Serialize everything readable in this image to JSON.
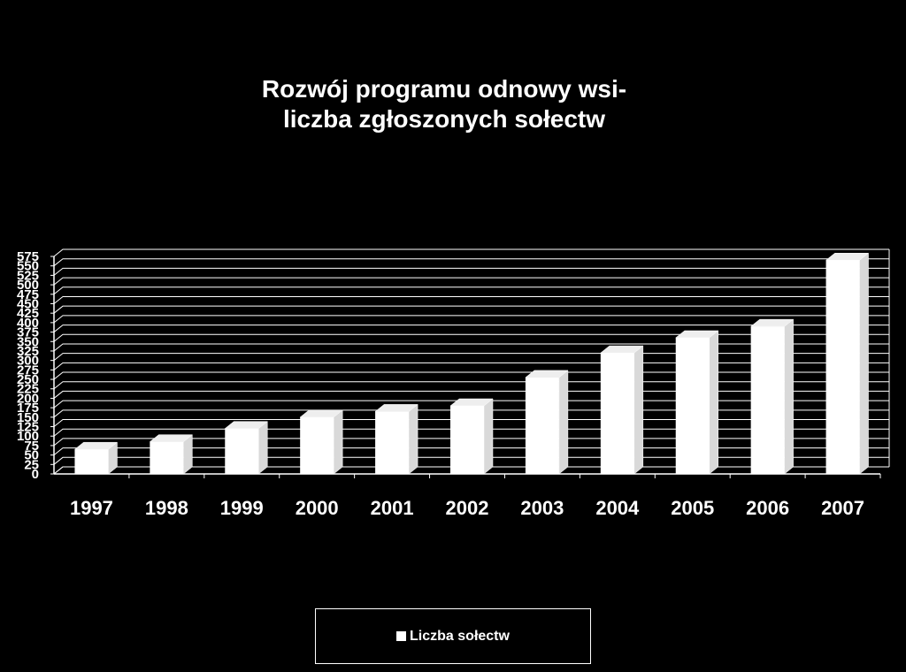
{
  "chart_data": {
    "type": "bar",
    "title_lines": [
      "Rozwój programu odnowy wsi-",
      "liczba zgłoszonych sołectw"
    ],
    "categories": [
      "1997",
      "1998",
      "1999",
      "2000",
      "2001",
      "2002",
      "2003",
      "2004",
      "2005",
      "2006",
      "2007"
    ],
    "series": [
      {
        "name": "Liczba sołectw",
        "values": [
          65,
          85,
          120,
          150,
          165,
          180,
          255,
          320,
          360,
          390,
          565
        ]
      }
    ],
    "ylim": [
      0,
      575
    ],
    "yticks": [
      0,
      25,
      50,
      75,
      100,
      125,
      150,
      175,
      200,
      225,
      250,
      275,
      300,
      325,
      350,
      375,
      400,
      425,
      450,
      475,
      500,
      525,
      550,
      575
    ],
    "grid": true,
    "legend_position": "bottom",
    "colors": {
      "background": "#000000",
      "bars": "#ffffff",
      "grid": "#ffffff",
      "text": "#ffffff"
    }
  }
}
